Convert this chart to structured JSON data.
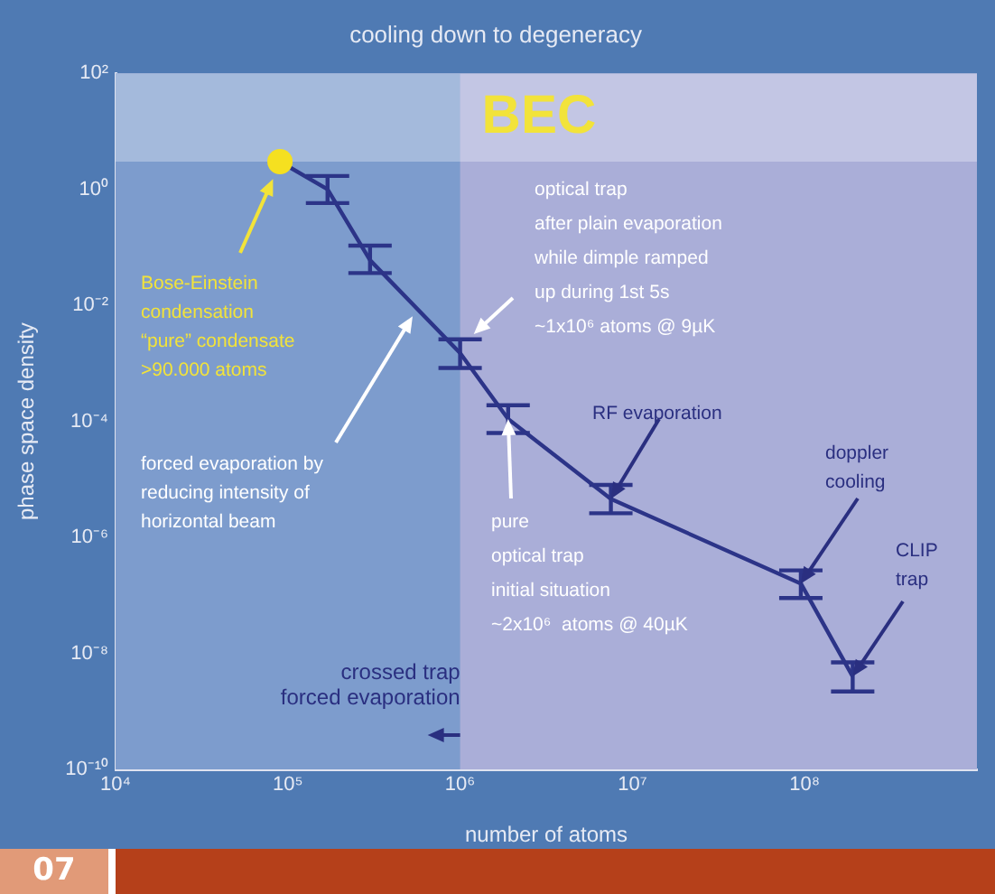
{
  "chart_data": {
    "type": "line",
    "title": "cooling down to degeneracy",
    "xlabel": "number of atoms",
    "ylabel": "phase space density",
    "log": "xy",
    "grid": false,
    "legend": false,
    "marker": "none",
    "xlim": [
      10000,
      1000000000
    ],
    "xticks": [
      {
        "value": 10000,
        "label": "10⁴"
      },
      {
        "value": 100000,
        "label": "10⁵"
      },
      {
        "value": 1000000,
        "label": "10⁶"
      },
      {
        "value": 10000000,
        "label": "10⁷"
      },
      {
        "value": 100000000,
        "label": "10⁸"
      }
    ],
    "ylim": [
      1e-10,
      100
    ],
    "yticks": [
      {
        "value": 1e-10,
        "label": "10⁻¹⁰"
      },
      {
        "value": 1e-08,
        "label": "10⁻⁸"
      },
      {
        "value": 1e-06,
        "label": "10⁻⁶"
      },
      {
        "value": 0.0001,
        "label": "10⁻⁴"
      },
      {
        "value": 0.01,
        "label": "10⁻²"
      },
      {
        "value": 1,
        "label": "10⁰"
      },
      {
        "value": 100,
        "label": "10²"
      }
    ],
    "series": [
      {
        "type": "line",
        "color": "#2c3488",
        "x": [
          90000,
          170000,
          300000,
          1000000,
          1900000,
          7500000,
          95000000,
          190000000
        ],
        "values": [
          3,
          1,
          0.06,
          0.0015,
          0.00011,
          4.6e-06,
          1.6e-07,
          4e-09
        ],
        "errors": [
          null,
          [
            0.58,
            1.7
          ],
          [
            0.036,
            0.107
          ],
          [
            0.00083,
            0.0026
          ],
          [
            6.3e-05,
            0.00019
          ],
          [
            2.6e-06,
            8e-06
          ],
          [
            9e-08,
            2.7e-07
          ],
          [
            2.2e-09,
            7e-09
          ]
        ]
      },
      {
        "type": "scatter",
        "color": "#f5e020",
        "marker": "circle",
        "x": [
          90000
        ],
        "values": [
          3
        ]
      }
    ],
    "bands": [
      {
        "axis": "x",
        "from": 10000,
        "to": 1000000,
        "label": "crossed trap\nforced evaporation",
        "color": "#7d9ccd"
      },
      {
        "axis": "y",
        "from": 3,
        "to": 100,
        "label": "BEC",
        "color": "#ffffff"
      }
    ],
    "annotations": [
      {
        "text": "Bose-Einstein\ncondensation\n“pure” condensate\n>90.000 atoms",
        "x": 82000,
        "y": 1.5
      },
      {
        "text": "forced evaporation by\nreducing intensity of\nhorizontal beam",
        "x": 530000,
        "y": 0.0065
      },
      {
        "text": "optical trap\nafter plain evaporation\nwhile dimple ramped\nup during 1st 5s\n~1x10⁶ atoms @ 9µK",
        "x": 1200000,
        "y": 0.0032
      },
      {
        "text": "pure\noptical trap\ninitial situation\n~2x10⁶  atoms @ 40µK",
        "x": 1900000,
        "y": 0.00011
      },
      {
        "text": "RF evaporation",
        "x": 7500000,
        "y": 4.6e-06
      },
      {
        "text": "doppler\ncooling",
        "x": 95000000,
        "y": 1.6e-07
      },
      {
        "text": "CLIP\ntrap",
        "x": 190000000,
        "y": 4e-09
      },
      "07"
    ]
  }
}
